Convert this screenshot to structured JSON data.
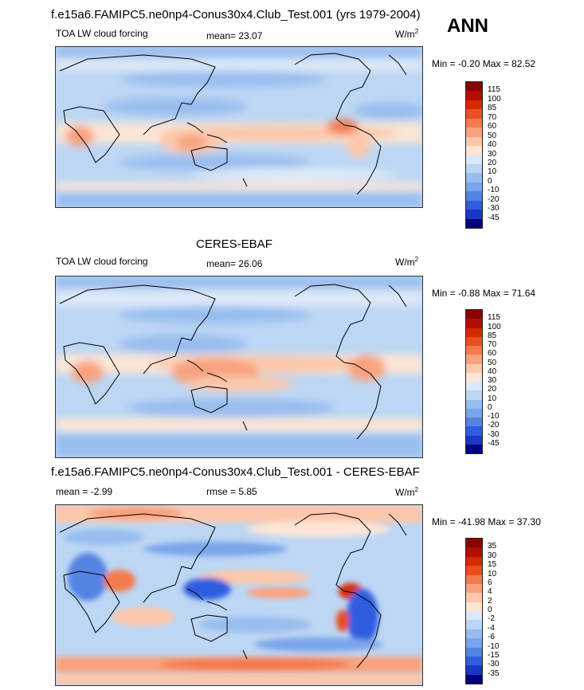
{
  "header": {
    "title": "f.e15a6.FAMIPC5.ne0np4-Conus30x4.Club_Test.001 (yrs 1979-2004)",
    "season": "ANN"
  },
  "panels": [
    {
      "subtitle": "",
      "variable": "TOA LW cloud forcing",
      "stat_label": "mean=",
      "stat_value": "23.07",
      "units": "W/m",
      "units_sup": "2",
      "minmax": "Min =  -0.20 Max =  82.52",
      "levels": [
        "115",
        "100",
        "85",
        "70",
        "60",
        "50",
        "40",
        "30",
        "20",
        "10",
        "0",
        "-10",
        "-20",
        "-30",
        "-45"
      ]
    },
    {
      "subtitle": "CERES-EBAF",
      "variable": "TOA LW cloud forcing",
      "stat_label": "mean=",
      "stat_value": "26.06",
      "units": "W/m",
      "units_sup": "2",
      "minmax": "Min =  -0.88 Max =  71.64",
      "levels": [
        "115",
        "100",
        "85",
        "70",
        "60",
        "50",
        "40",
        "30",
        "20",
        "10",
        "0",
        "-10",
        "-20",
        "-30",
        "-45"
      ]
    },
    {
      "subtitle": "f.e15a6.FAMIPC5.ne0np4-Conus30x4.Club_Test.001 - CERES-EBAF",
      "stat_label": "mean =",
      "stat_value": "-2.99",
      "rmse_label": "rmse =",
      "rmse_value": "5.85",
      "units": "W/m",
      "units_sup": "2",
      "minmax": "Min = -41.98 Max =  37.30",
      "levels": [
        "35",
        "30",
        "15",
        "10",
        "6",
        "4",
        "2",
        "0",
        "-2",
        "-4",
        "-6",
        "-10",
        "-15",
        "-30",
        "-35"
      ]
    }
  ],
  "colors": {
    "field_scale": [
      "#8b0000",
      "#b00f00",
      "#d42a00",
      "#e9501e",
      "#f47a4e",
      "#f9a27e",
      "#fcc8ab",
      "#fde6d6",
      "#dce9f8",
      "#bcd6f4",
      "#98bdee",
      "#7aa5ea",
      "#5583e3",
      "#2f5de0",
      "#1b36c8",
      "#000080"
    ],
    "diff_scale": [
      "#8b0000",
      "#b00f00",
      "#d42a00",
      "#e9501e",
      "#f47a4e",
      "#f9a27e",
      "#fcc8ab",
      "#fde6d6",
      "#dce9f8",
      "#bcd6f4",
      "#98bdee",
      "#7aa5ea",
      "#5583e3",
      "#2f5de0",
      "#1b36c8",
      "#000080"
    ],
    "coastline": "#000000"
  }
}
